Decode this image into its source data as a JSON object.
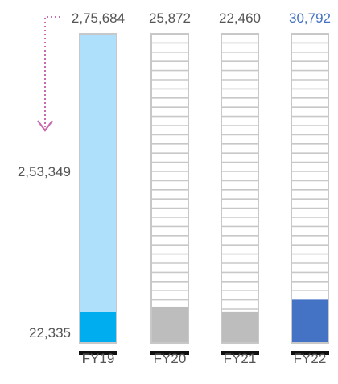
{
  "chart_data": {
    "type": "bar",
    "categories": [
      "FY19",
      "FY20",
      "FY21",
      "FY22"
    ],
    "totals": [
      275684,
      25872,
      22460,
      30792
    ],
    "total_labels": [
      "2,75,684",
      "25,872",
      "22,460",
      "30,792"
    ],
    "base_values": [
      22335,
      25872,
      22460,
      30792
    ],
    "annotations": {
      "base_label": "22,335",
      "remainder_label": "2,53,349",
      "remainder_value": 253349
    },
    "colors": {
      "fy19_total": "#aee0fb",
      "fy19_base": "#00aeef",
      "grey_base": "#bdbdbd",
      "fy22_base": "#4472c4",
      "fy22_label": "#4472c4",
      "outline": "#c8c8c8",
      "text": "#555555",
      "baseline": "#111111",
      "arrow": "#c86bb0"
    }
  }
}
